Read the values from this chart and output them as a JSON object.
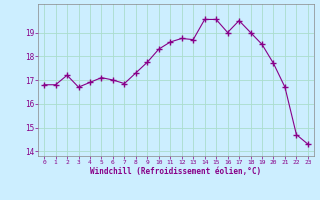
{
  "x": [
    0,
    1,
    2,
    3,
    4,
    5,
    6,
    7,
    8,
    9,
    10,
    11,
    12,
    13,
    14,
    15,
    16,
    17,
    18,
    19,
    20,
    21,
    22,
    23
  ],
  "y": [
    16.8,
    16.8,
    17.2,
    16.7,
    16.9,
    17.1,
    17.0,
    16.85,
    17.3,
    17.75,
    18.3,
    18.6,
    18.75,
    18.7,
    19.55,
    19.55,
    19.0,
    19.5,
    19.0,
    18.5,
    17.7,
    16.7,
    14.7,
    14.3
  ],
  "line_color": "#880088",
  "marker": "+",
  "markersize": 4,
  "bg_color": "#cceeff",
  "grid_color": "#aaddcc",
  "xlabel": "Windchill (Refroidissement éolien,°C)",
  "xlabel_color": "#880088",
  "tick_color": "#880088",
  "label_color": "#880088",
  "spine_color": "#888888",
  "ylim": [
    13.8,
    20.2
  ],
  "xlim": [
    -0.5,
    23.5
  ],
  "yticks": [
    14,
    15,
    16,
    17,
    18,
    19
  ],
  "xticks": [
    0,
    1,
    2,
    3,
    4,
    5,
    6,
    7,
    8,
    9,
    10,
    11,
    12,
    13,
    14,
    15,
    16,
    17,
    18,
    19,
    20,
    21,
    22,
    23
  ]
}
